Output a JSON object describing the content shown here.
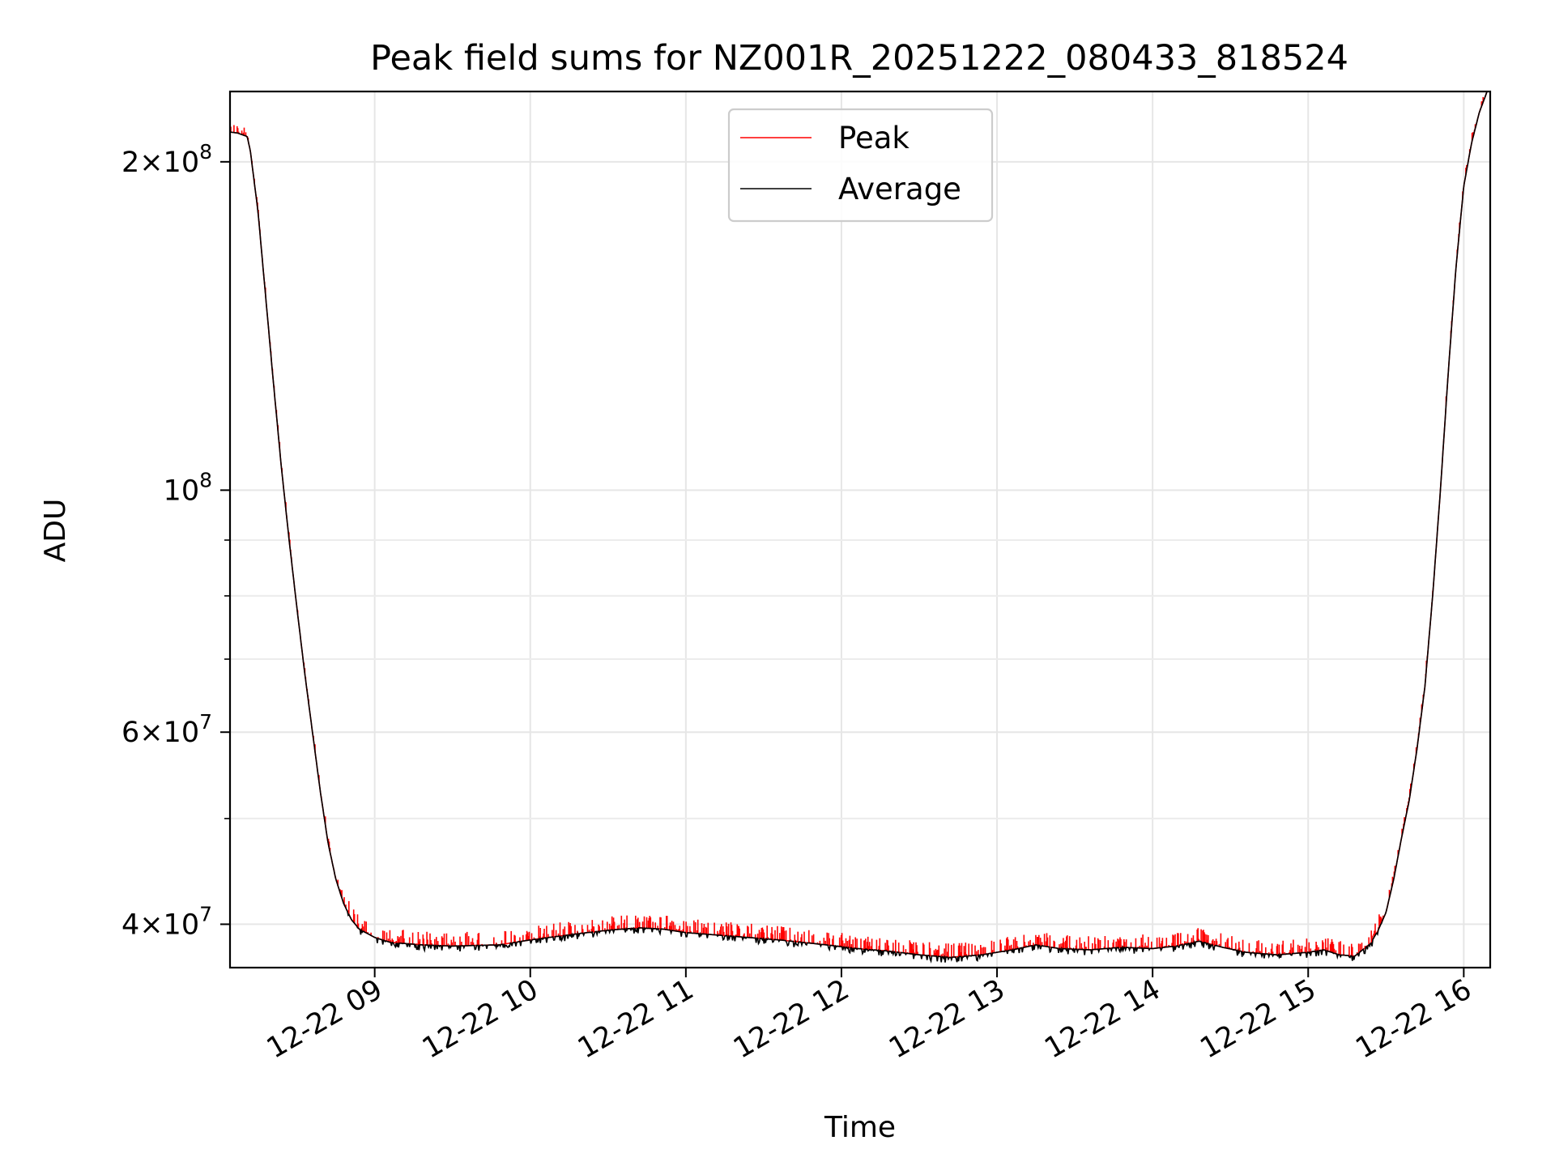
{
  "chart_data": {
    "type": "line",
    "title": "Peak field sums for NZ001R_20251222_080433_818524",
    "xlabel": "Time",
    "ylabel": "ADU",
    "yscale": "log",
    "xlim_hours": [
      8.07,
      16.17
    ],
    "ylim": [
      36500000,
      232000000
    ],
    "grid": true,
    "legend_position": "top-center",
    "x_ticks": [
      {
        "value": 9,
        "label": "12-22 09"
      },
      {
        "value": 10,
        "label": "12-22 10"
      },
      {
        "value": 11,
        "label": "12-22 11"
      },
      {
        "value": 12,
        "label": "12-22 12"
      },
      {
        "value": 13,
        "label": "12-22 13"
      },
      {
        "value": 14,
        "label": "12-22 14"
      },
      {
        "value": 15,
        "label": "12-22 15"
      },
      {
        "value": 16,
        "label": "12-22 16"
      }
    ],
    "y_ticks": [
      {
        "value": 40000000,
        "mantissa": "4",
        "exp": "7"
      },
      {
        "value": 60000000,
        "mantissa": "6",
        "exp": "7"
      },
      {
        "value": 100000000,
        "mantissa": "",
        "exp": "8"
      },
      {
        "value": 200000000,
        "mantissa": "2",
        "exp": "8"
      }
    ],
    "y_minor_ticks": [
      50000000,
      70000000,
      80000000,
      90000000
    ],
    "series": [
      {
        "name": "Peak",
        "color": "#ff0000",
        "style": "noisy-spikes-above-average",
        "spike_amplitude_pct": 3
      },
      {
        "name": "Average",
        "color": "#000000",
        "points": [
          [
            8.07,
            213000000
          ],
          [
            8.12,
            212500000
          ],
          [
            8.18,
            211000000
          ],
          [
            8.2,
            205000000
          ],
          [
            8.25,
            180000000
          ],
          [
            8.3,
            150000000
          ],
          [
            8.35,
            125000000
          ],
          [
            8.4,
            105000000
          ],
          [
            8.45,
            90000000
          ],
          [
            8.5,
            78000000
          ],
          [
            8.55,
            68000000
          ],
          [
            8.6,
            60000000
          ],
          [
            8.65,
            53000000
          ],
          [
            8.7,
            47500000
          ],
          [
            8.75,
            44000000
          ],
          [
            8.8,
            41800000
          ],
          [
            8.85,
            40400000
          ],
          [
            8.9,
            39600000
          ],
          [
            9.0,
            38900000
          ],
          [
            9.1,
            38500000
          ],
          [
            9.3,
            38300000
          ],
          [
            9.5,
            38200000
          ],
          [
            9.8,
            38300000
          ],
          [
            10.0,
            38700000
          ],
          [
            10.3,
            39200000
          ],
          [
            10.5,
            39500000
          ],
          [
            10.7,
            39700000
          ],
          [
            10.85,
            39600000
          ],
          [
            11.0,
            39300000
          ],
          [
            11.3,
            39000000
          ],
          [
            11.6,
            38700000
          ],
          [
            11.9,
            38300000
          ],
          [
            12.1,
            38000000
          ],
          [
            12.3,
            37800000
          ],
          [
            12.5,
            37500000
          ],
          [
            12.7,
            37300000
          ],
          [
            12.9,
            37500000
          ],
          [
            13.1,
            37900000
          ],
          [
            13.25,
            38300000
          ],
          [
            13.4,
            38000000
          ],
          [
            13.6,
            37900000
          ],
          [
            13.8,
            38100000
          ],
          [
            14.0,
            38000000
          ],
          [
            14.15,
            38200000
          ],
          [
            14.3,
            38600000
          ],
          [
            14.45,
            38100000
          ],
          [
            14.6,
            37700000
          ],
          [
            14.8,
            37500000
          ],
          [
            15.0,
            37700000
          ],
          [
            15.1,
            37900000
          ],
          [
            15.2,
            37500000
          ],
          [
            15.3,
            37400000
          ],
          [
            15.4,
            38400000
          ],
          [
            15.45,
            39500000
          ],
          [
            15.5,
            41000000
          ],
          [
            15.55,
            44000000
          ],
          [
            15.6,
            48000000
          ],
          [
            15.65,
            52000000
          ],
          [
            15.7,
            58000000
          ],
          [
            15.75,
            66000000
          ],
          [
            15.8,
            80000000
          ],
          [
            15.85,
            100000000
          ],
          [
            15.9,
            128000000
          ],
          [
            15.95,
            160000000
          ],
          [
            16.0,
            190000000
          ],
          [
            16.05,
            208000000
          ],
          [
            16.1,
            222000000
          ],
          [
            16.15,
            232000000
          ],
          [
            16.17,
            232000000
          ]
        ]
      }
    ]
  }
}
